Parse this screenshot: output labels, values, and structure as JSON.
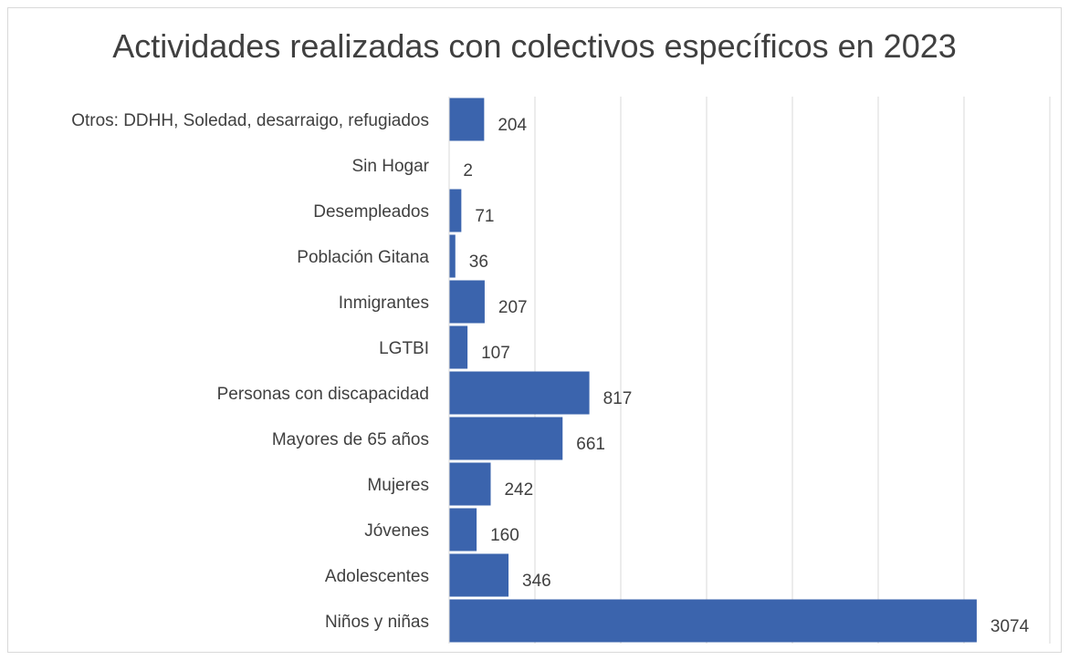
{
  "chart_data": {
    "type": "bar",
    "orientation": "horizontal",
    "title": "Actividades realizadas con colectivos específicos en 2023",
    "categories": [
      "Otros: DDHH, Soledad, desarraigo, refugiados",
      "Sin Hogar",
      "Desempleados",
      "Población Gitana",
      "Inmigrantes",
      "LGTBI",
      "Personas con discapacidad",
      "Mayores de 65 años",
      "Mujeres",
      "Jóvenes",
      "Adolescentes",
      "Niños y niñas"
    ],
    "values": [
      204,
      2,
      71,
      36,
      207,
      107,
      817,
      661,
      242,
      160,
      346,
      3074
    ],
    "xlim": [
      0,
      3500
    ],
    "grid": true,
    "legend": "none",
    "bar_color": "#3b64ad",
    "grid_color": "#d9d9d9"
  }
}
